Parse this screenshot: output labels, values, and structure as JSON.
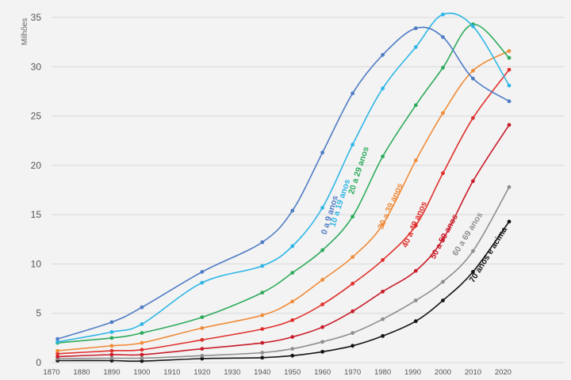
{
  "chart_data": {
    "type": "line",
    "ylabel": "Milhões",
    "xlim": [
      1870,
      2022
    ],
    "ylim": [
      0,
      35
    ],
    "x_ticks": [
      "1870",
      "1880",
      "1890",
      "1900",
      "1910",
      "1920",
      "1930",
      "1940",
      "1950",
      "1960",
      "1970",
      "1980",
      "1990",
      "2000",
      "2010",
      "2020"
    ],
    "y_ticks": [
      "0",
      "5",
      "10",
      "15",
      "20",
      "25",
      "30",
      "35"
    ],
    "grid": "horizontal",
    "x": [
      1872,
      1890,
      1900,
      1920,
      1940,
      1950,
      1960,
      1970,
      1980,
      1991,
      2000,
      2010,
      2022
    ],
    "series": [
      {
        "name": "0 a 9 anos",
        "color": "#4f7cc5",
        "values": [
          2.4,
          4.1,
          5.6,
          9.2,
          12.2,
          15.4,
          21.3,
          27.3,
          31.2,
          33.9,
          33.0,
          28.8,
          26.5
        ]
      },
      {
        "name": "10 a 19 anos",
        "color": "#2eb6e6",
        "values": [
          2.1,
          3.1,
          3.9,
          8.1,
          9.8,
          11.8,
          15.7,
          22.1,
          27.8,
          32.0,
          35.3,
          34.1,
          28.1
        ]
      },
      {
        "name": "20 a 29 anos",
        "color": "#2dab5b",
        "values": [
          2.0,
          2.5,
          3.0,
          4.6,
          7.1,
          9.1,
          11.4,
          14.8,
          20.9,
          26.1,
          29.9,
          34.3,
          30.9
        ]
      },
      {
        "name": "30 a 39 anos",
        "color": "#f08c3a",
        "values": [
          1.2,
          1.7,
          2.0,
          3.5,
          4.8,
          6.2,
          8.4,
          10.7,
          14.0,
          20.5,
          25.3,
          29.6,
          31.6
        ]
      },
      {
        "name": "40 a 49 anos",
        "color": "#e0302b",
        "values": [
          0.9,
          1.2,
          1.3,
          2.3,
          3.4,
          4.3,
          5.9,
          8.0,
          10.4,
          13.9,
          19.2,
          24.8,
          29.7
        ]
      },
      {
        "name": "50 a 59 anos",
        "color": "#c81d2a",
        "values": [
          0.6,
          0.8,
          0.8,
          1.4,
          2.0,
          2.6,
          3.6,
          5.2,
          7.2,
          9.3,
          12.5,
          18.4,
          24.1
        ]
      },
      {
        "name": "60 a 69 anos",
        "color": "#8e8e8e",
        "values": [
          0.4,
          0.45,
          0.45,
          0.7,
          1.0,
          1.4,
          2.1,
          3.0,
          4.4,
          6.3,
          8.2,
          11.3,
          17.8
        ]
      },
      {
        "name": "70 anos e acima",
        "color": "#151515",
        "values": [
          0.2,
          0.2,
          0.15,
          0.4,
          0.5,
          0.7,
          1.1,
          1.7,
          2.7,
          4.2,
          6.3,
          9.2,
          14.3
        ]
      }
    ]
  }
}
